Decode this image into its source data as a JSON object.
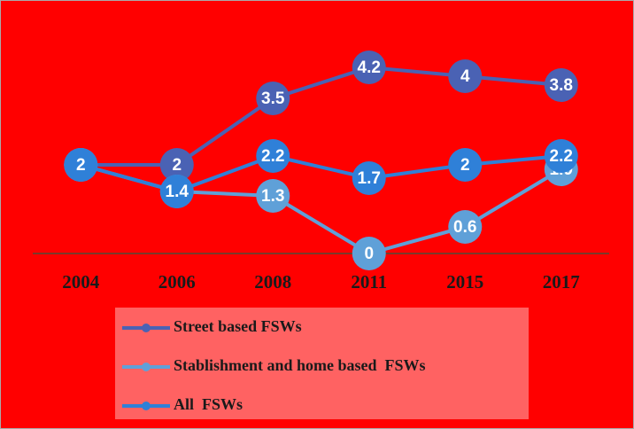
{
  "chart_data": {
    "type": "line",
    "categories": [
      "2004",
      "2006",
      "2008",
      "2011",
      "2015",
      "2017"
    ],
    "series": [
      {
        "name": "Street based FSWs",
        "color": "#4a62b4",
        "values": [
          2,
          2,
          3.5,
          4.2,
          4,
          3.8
        ]
      },
      {
        "name": "Stablishment and home based  FSWs",
        "color": "#5fa0d8",
        "values": [
          2,
          1.4,
          1.3,
          0,
          0.6,
          1.9
        ]
      },
      {
        "name": "All  FSWs",
        "color": "#2f80d8",
        "values": [
          2,
          1.4,
          2.2,
          1.7,
          2,
          2.2
        ]
      }
    ],
    "ylim": [
      0,
      5
    ],
    "background": "#ff0000",
    "legend_background": "#ff6262"
  }
}
